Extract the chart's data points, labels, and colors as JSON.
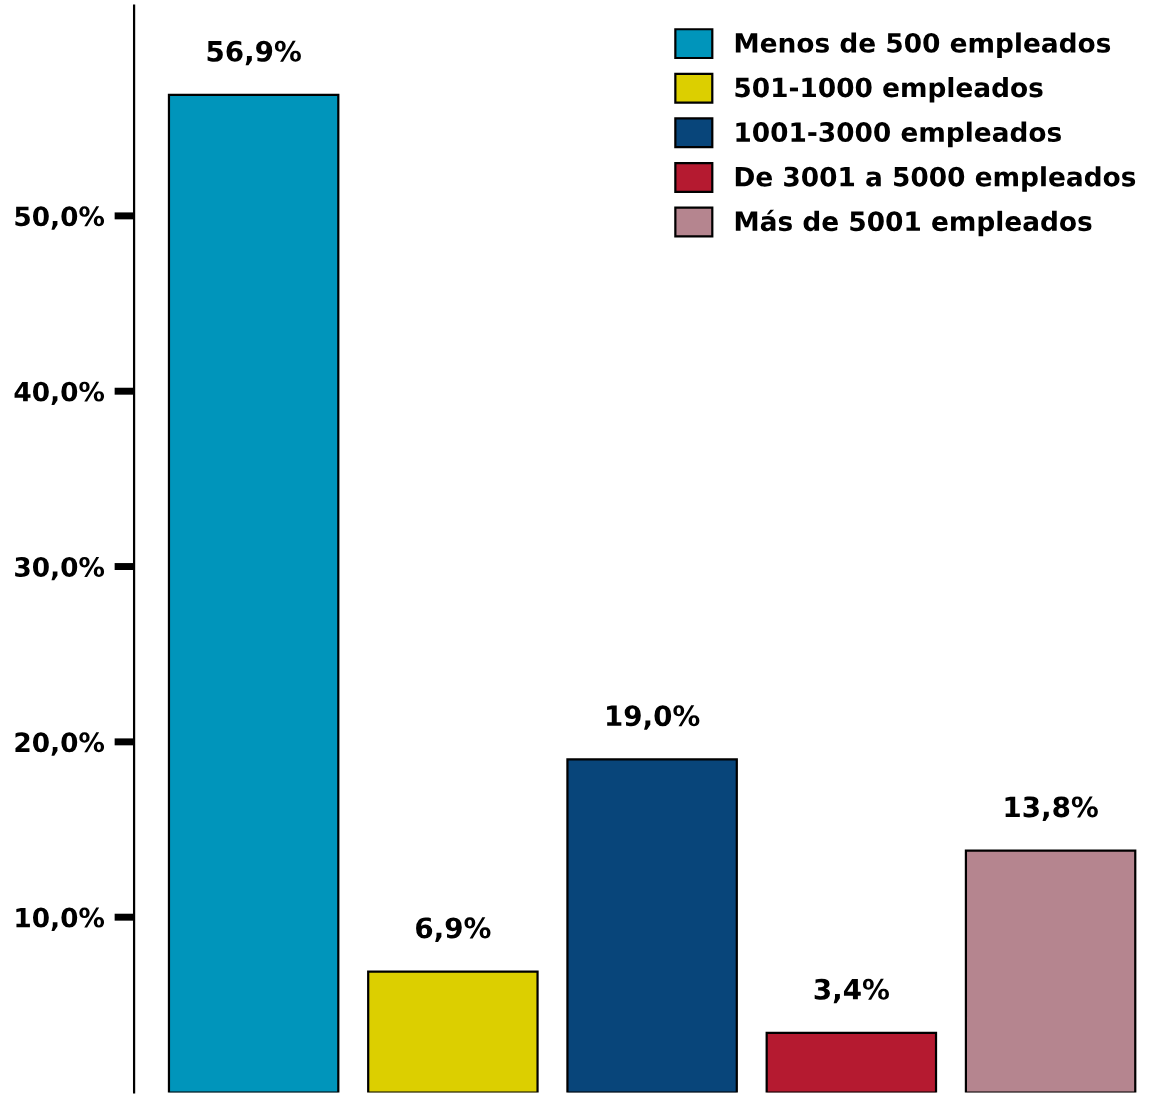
{
  "chart_data": {
    "type": "bar",
    "categories": [
      null
    ],
    "series": [
      {
        "name": "Menos de 500 empleados",
        "color": "#0095bb",
        "values": [
          56.9
        ],
        "value_labels": [
          "56,9%"
        ]
      },
      {
        "name": "501-1000 empleados",
        "color": "#dccf00",
        "values": [
          6.9
        ],
        "value_labels": [
          "6,9%"
        ]
      },
      {
        "name": "1001-3000 empleados",
        "color": "#08457a",
        "values": [
          19.0
        ],
        "value_labels": [
          "19,0%"
        ]
      },
      {
        "name": "De 3001 a 5000 empleados",
        "color": "#b51a30",
        "values": [
          3.4
        ],
        "value_labels": [
          "3,4%"
        ]
      },
      {
        "name": "Más de 5001 empleados",
        "color": "#b5858f",
        "values": [
          13.8
        ],
        "value_labels": [
          "13,8%"
        ]
      }
    ],
    "ylim": [
      0,
      62
    ],
    "yticks": [
      {
        "value": 10,
        "label": "10,0%"
      },
      {
        "value": 20,
        "label": "20,0%"
      },
      {
        "value": 30,
        "label": "30,0%"
      },
      {
        "value": 40,
        "label": "40,0%"
      },
      {
        "value": 50,
        "label": "50,0%"
      }
    ],
    "grid": false,
    "legend": "top right"
  }
}
